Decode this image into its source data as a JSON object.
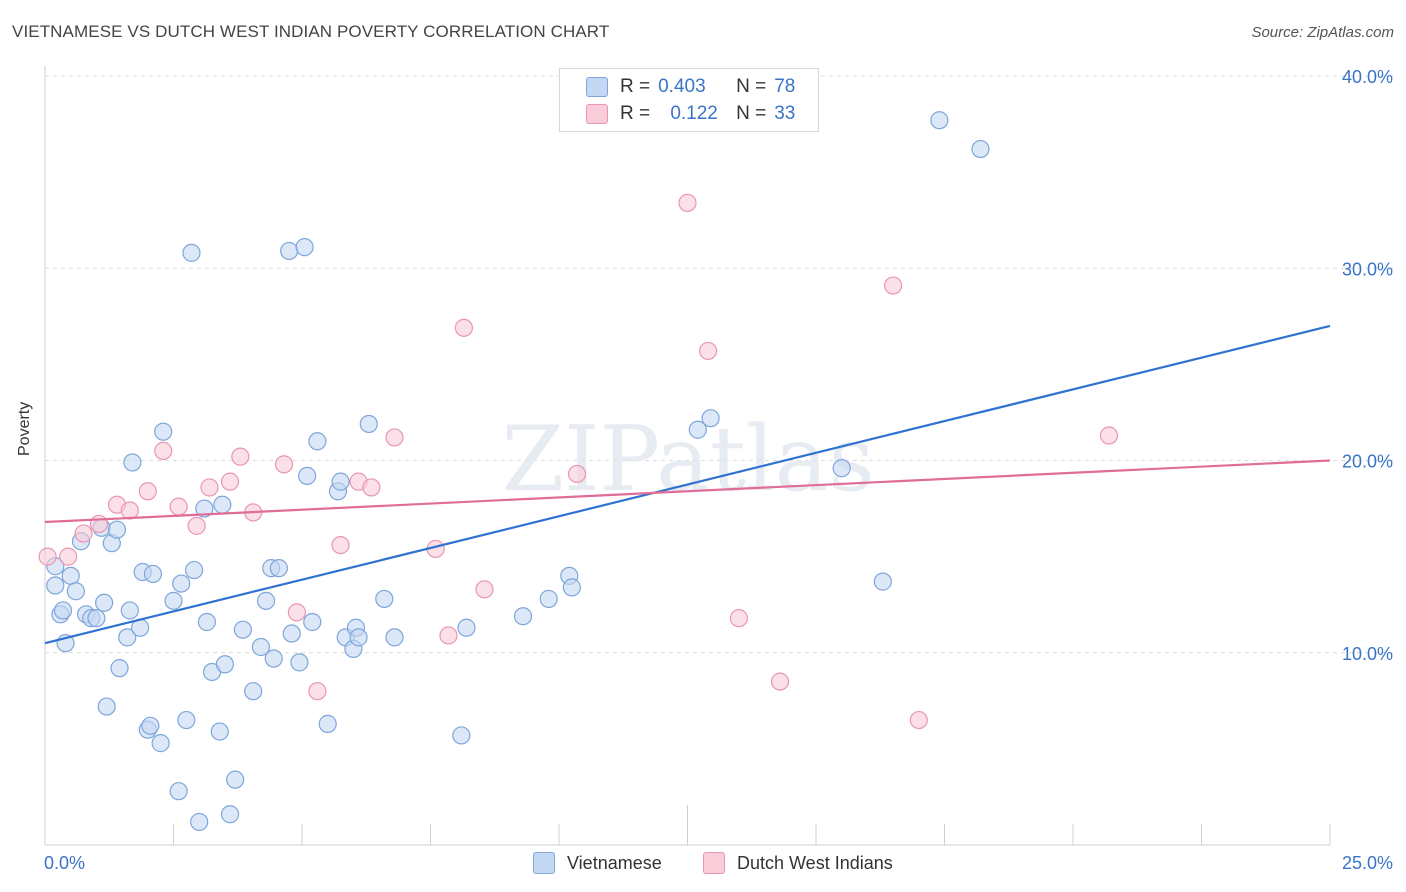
{
  "title": "VIETNAMESE VS DUTCH WEST INDIAN POVERTY CORRELATION CHART",
  "source": "Source: ZipAtlas.com",
  "watermark": "ZIPatlas",
  "colors": {
    "blue_fill": "#c4d8f3",
    "blue_stroke": "#7ea6da",
    "blue_line": "#2f72d0",
    "pink_fill": "#f9ccd9",
    "pink_stroke": "#e996b1",
    "pink_line": "#e06c98",
    "axis_text": "#3a73c8"
  },
  "legend": {
    "r_label": "R =",
    "n_label": "N =",
    "rows": [
      {
        "name": "Vietnamese",
        "r": "0.403",
        "n": "78"
      },
      {
        "name": "Dutch West Indians",
        "r": "0.122",
        "n": "33"
      }
    ]
  },
  "chart_data": {
    "type": "scatter",
    "title": "VIETNAMESE VS DUTCH WEST INDIAN POVERTY CORRELATION CHART",
    "xlabel": "",
    "ylabel": "Poverty",
    "xlim": [
      0,
      25
    ],
    "ylim": [
      0,
      40
    ],
    "x_tick_labels": [
      "0.0%",
      "25.0%"
    ],
    "y_ticks": [
      10,
      20,
      30,
      40
    ],
    "y_tick_labels": [
      "10.0%",
      "20.0%",
      "30.0%",
      "40.0%"
    ],
    "grid": true,
    "series": [
      {
        "name": "Vietnamese",
        "trend": {
          "x": [
            0,
            25
          ],
          "y": [
            10.5,
            27.0
          ]
        },
        "points": [
          [
            0.2,
            14.5
          ],
          [
            0.2,
            13.5
          ],
          [
            0.3,
            12.0
          ],
          [
            0.35,
            12.2
          ],
          [
            0.4,
            10.5
          ],
          [
            0.5,
            14.0
          ],
          [
            0.6,
            13.2
          ],
          [
            0.7,
            15.8
          ],
          [
            0.8,
            12.0
          ],
          [
            0.9,
            11.8
          ],
          [
            1.0,
            11.8
          ],
          [
            1.1,
            16.5
          ],
          [
            1.15,
            12.6
          ],
          [
            1.2,
            7.2
          ],
          [
            1.3,
            15.7
          ],
          [
            1.4,
            16.4
          ],
          [
            1.45,
            9.2
          ],
          [
            1.6,
            10.8
          ],
          [
            1.65,
            12.2
          ],
          [
            1.7,
            19.9
          ],
          [
            1.85,
            11.3
          ],
          [
            1.9,
            14.2
          ],
          [
            2.0,
            6.0
          ],
          [
            2.05,
            6.2
          ],
          [
            2.1,
            14.1
          ],
          [
            2.25,
            5.3
          ],
          [
            2.3,
            21.5
          ],
          [
            2.5,
            12.7
          ],
          [
            2.6,
            2.8
          ],
          [
            2.65,
            13.6
          ],
          [
            2.75,
            6.5
          ],
          [
            2.85,
            30.8
          ],
          [
            2.9,
            14.3
          ],
          [
            3.0,
            1.2
          ],
          [
            3.1,
            17.5
          ],
          [
            3.15,
            11.6
          ],
          [
            3.25,
            9.0
          ],
          [
            3.4,
            5.9
          ],
          [
            3.45,
            17.7
          ],
          [
            3.5,
            9.4
          ],
          [
            3.6,
            1.6
          ],
          [
            3.7,
            3.4
          ],
          [
            3.85,
            11.2
          ],
          [
            4.05,
            8.0
          ],
          [
            4.2,
            10.3
          ],
          [
            4.3,
            12.7
          ],
          [
            4.4,
            14.4
          ],
          [
            4.45,
            9.7
          ],
          [
            4.55,
            14.4
          ],
          [
            4.75,
            30.9
          ],
          [
            4.8,
            11.0
          ],
          [
            4.95,
            9.5
          ],
          [
            5.05,
            31.1
          ],
          [
            5.1,
            19.2
          ],
          [
            5.2,
            11.6
          ],
          [
            5.3,
            21.0
          ],
          [
            5.5,
            6.3
          ],
          [
            5.7,
            18.4
          ],
          [
            5.75,
            18.9
          ],
          [
            5.85,
            10.8
          ],
          [
            6.0,
            10.2
          ],
          [
            6.05,
            11.3
          ],
          [
            6.1,
            10.8
          ],
          [
            6.3,
            21.9
          ],
          [
            6.6,
            12.8
          ],
          [
            6.8,
            10.8
          ],
          [
            8.1,
            5.7
          ],
          [
            8.2,
            11.3
          ],
          [
            9.3,
            11.9
          ],
          [
            9.8,
            12.8
          ],
          [
            10.2,
            14.0
          ],
          [
            10.25,
            13.4
          ],
          [
            12.7,
            21.6
          ],
          [
            12.95,
            22.2
          ],
          [
            15.5,
            19.6
          ],
          [
            16.3,
            13.7
          ],
          [
            17.4,
            37.7
          ],
          [
            18.2,
            36.2
          ]
        ]
      },
      {
        "name": "Dutch West Indians",
        "trend": {
          "x": [
            0,
            25
          ],
          "y": [
            16.8,
            20.0
          ]
        },
        "points": [
          [
            0.05,
            15.0
          ],
          [
            0.45,
            15.0
          ],
          [
            0.75,
            16.2
          ],
          [
            1.05,
            16.7
          ],
          [
            1.4,
            17.7
          ],
          [
            1.65,
            17.4
          ],
          [
            2.0,
            18.4
          ],
          [
            2.3,
            20.5
          ],
          [
            2.6,
            17.6
          ],
          [
            2.95,
            16.6
          ],
          [
            3.2,
            18.6
          ],
          [
            3.6,
            18.9
          ],
          [
            3.8,
            20.2
          ],
          [
            4.05,
            17.3
          ],
          [
            4.65,
            19.8
          ],
          [
            4.9,
            12.1
          ],
          [
            5.3,
            8.0
          ],
          [
            5.75,
            15.6
          ],
          [
            6.1,
            18.9
          ],
          [
            6.35,
            18.6
          ],
          [
            6.8,
            21.2
          ],
          [
            7.6,
            15.4
          ],
          [
            7.85,
            10.9
          ],
          [
            8.15,
            26.9
          ],
          [
            8.55,
            13.3
          ],
          [
            10.35,
            19.3
          ],
          [
            12.5,
            33.4
          ],
          [
            12.9,
            25.7
          ],
          [
            13.5,
            11.8
          ],
          [
            14.3,
            8.5
          ],
          [
            16.5,
            29.1
          ],
          [
            17.0,
            6.5
          ],
          [
            20.7,
            21.3
          ]
        ]
      }
    ]
  }
}
